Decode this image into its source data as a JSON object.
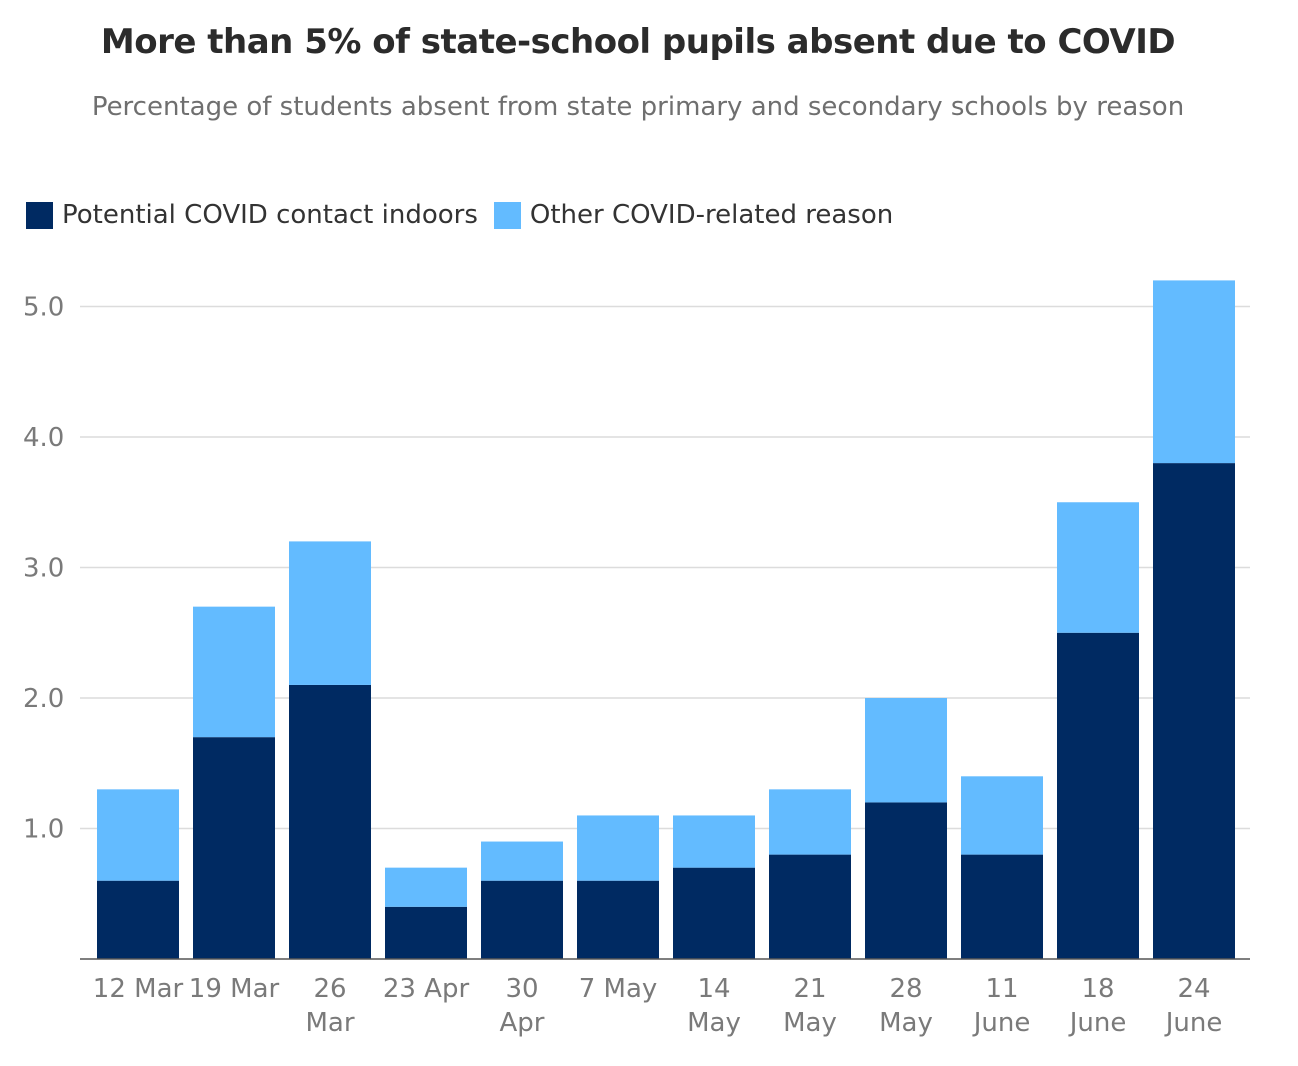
{
  "chart_data": {
    "type": "bar",
    "stacked": true,
    "title": "More than 5% of state-school pupils absent due to COVID",
    "subtitle": "Percentage of students absent from state primary and secondary schools by reason",
    "categories": [
      [
        "12 Mar"
      ],
      [
        "19 Mar"
      ],
      [
        "26",
        "Mar"
      ],
      [
        "23 Apr"
      ],
      [
        "30",
        "Apr"
      ],
      [
        "7 May"
      ],
      [
        "14",
        "May"
      ],
      [
        "21",
        "May"
      ],
      [
        "28",
        "May"
      ],
      [
        "11",
        "June"
      ],
      [
        "18",
        "June"
      ],
      [
        "24",
        "June"
      ]
    ],
    "series": [
      {
        "name": "Potential COVID contact indoors",
        "color": "#002a62",
        "values": [
          0.6,
          1.7,
          2.1,
          0.4,
          0.6,
          0.6,
          0.7,
          0.8,
          1.2,
          0.8,
          2.5,
          3.8
        ]
      },
      {
        "name": "Other COVID-related reason",
        "color": "#63bbff",
        "values": [
          0.7,
          1.0,
          1.1,
          0.3,
          0.3,
          0.5,
          0.4,
          0.5,
          0.8,
          0.6,
          1.0,
          1.4
        ]
      }
    ],
    "yticks": [
      "1.0",
      "2.0",
      "3.0",
      "4.0",
      "5.0"
    ],
    "ylim": [
      0,
      5.2
    ],
    "grid": true,
    "legend": "top-left"
  }
}
